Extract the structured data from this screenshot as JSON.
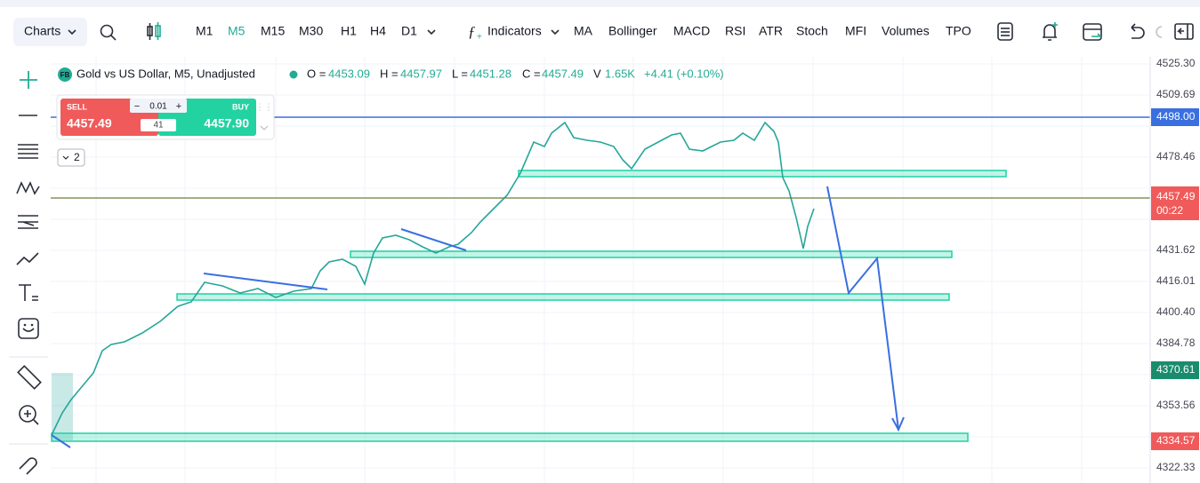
{
  "top_bar": {
    "charts": "Charts",
    "timeframes": [
      "M1",
      "M5",
      "M15",
      "M30",
      "H1",
      "H4",
      "D1"
    ],
    "indicators": "Indicators",
    "indicator_list": [
      "MA",
      "Bollinger",
      "MACD",
      "RSI",
      "ATR",
      "Stoch",
      "MFI",
      "Volumes",
      "TPO"
    ]
  },
  "legend": {
    "badge": "FB",
    "symbol": "Gold vs US Dollar, M5, Unadjusted",
    "open_label": "O =",
    "open": "4453.09",
    "high_label": "H =",
    "high": "4457.97",
    "low_label": "L =",
    "low": "4451.28",
    "close_label": "C =",
    "close": "4457.49",
    "volume_label": "V",
    "volume": "1.65K",
    "change": "+4.41 (+0.10%)"
  },
  "trade_panel": {
    "sell_label": "SELL",
    "sell_price": "4457.49",
    "quantity": "0.01",
    "spread": "41",
    "buy_label": "BUY",
    "buy_price": "4457.90",
    "layers": "2"
  },
  "price_axis": {
    "labels": [
      "4525.30",
      "4509.69",
      "4478.46",
      "4431.62",
      "4416.01",
      "4400.40",
      "4384.78",
      "4353.56",
      "4322.33"
    ],
    "line_badge": "4498.00",
    "last_price": "4457.49",
    "countdown": "00:22",
    "marker_badge": "4370.61",
    "bottom_badge": "4334.57"
  }
}
